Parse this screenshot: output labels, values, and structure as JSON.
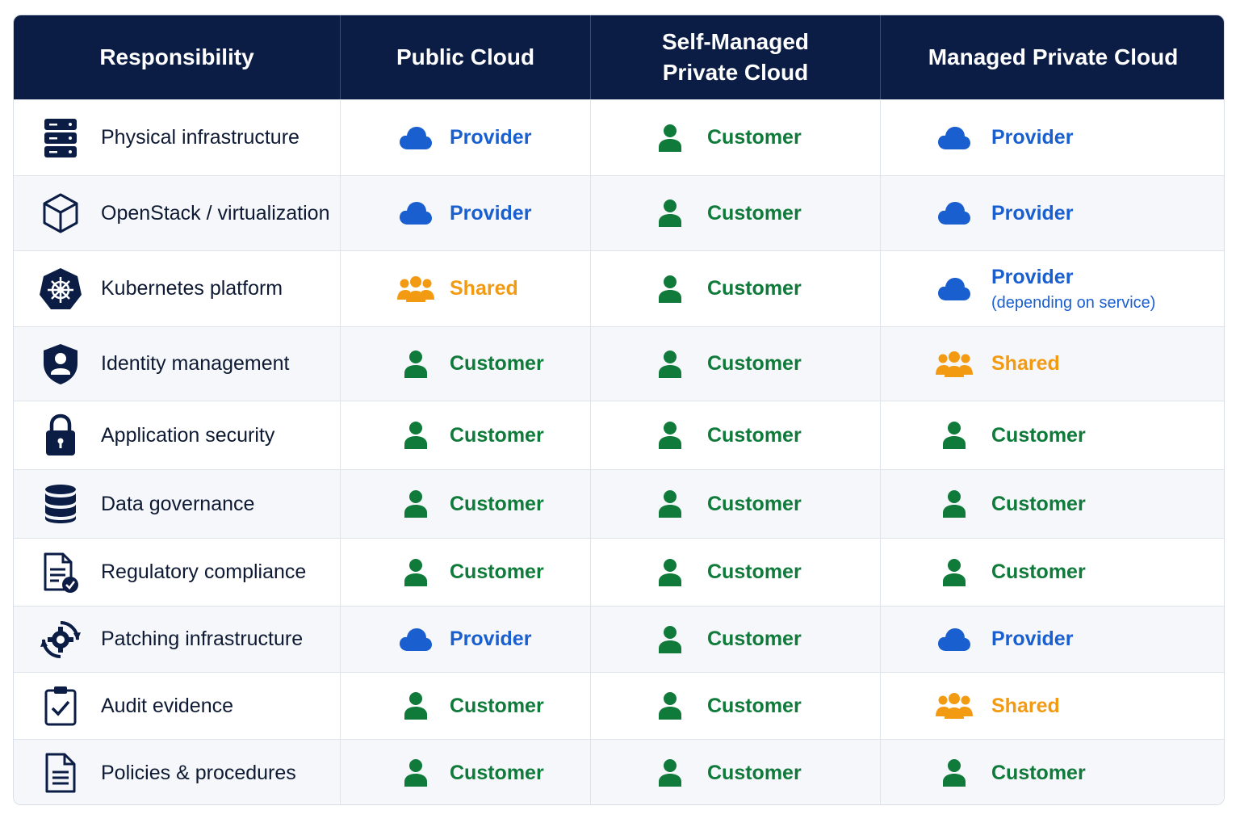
{
  "header": {
    "responsibility": "Responsibility",
    "public_cloud": "Public Cloud",
    "self_managed_line1": "Self-Managed",
    "self_managed_line2": "Private Cloud",
    "managed_private": "Managed Private Cloud"
  },
  "legend_colors": {
    "provider": "#1a5fd0",
    "customer": "#0f7a3a",
    "shared": "#f29a12",
    "header_bg": "#0b1d45"
  },
  "rows": [
    {
      "label": "Physical infrastructure",
      "icon": "server-icon",
      "public": "Provider",
      "self": "Customer",
      "managed": "Provider",
      "managed_note": ""
    },
    {
      "label": "OpenStack / virtualization",
      "icon": "cube-icon",
      "public": "Provider",
      "self": "Customer",
      "managed": "Provider",
      "managed_note": ""
    },
    {
      "label": "Kubernetes platform",
      "icon": "kubernetes-icon",
      "public": "Shared",
      "self": "Customer",
      "managed": "Provider",
      "managed_note": "(depending on service)"
    },
    {
      "label": "Identity management",
      "icon": "shield-user-icon",
      "public": "Customer",
      "self": "Customer",
      "managed": "Shared",
      "managed_note": ""
    },
    {
      "label": "Application security",
      "icon": "lock-icon",
      "public": "Customer",
      "self": "Customer",
      "managed": "Customer",
      "managed_note": ""
    },
    {
      "label": "Data governance",
      "icon": "database-icon",
      "public": "Customer",
      "self": "Customer",
      "managed": "Customer",
      "managed_note": ""
    },
    {
      "label": "Regulatory compliance",
      "icon": "document-check-icon",
      "public": "Customer",
      "self": "Customer",
      "managed": "Customer",
      "managed_note": ""
    },
    {
      "label": "Patching infrastructure",
      "icon": "gear-refresh-icon",
      "public": "Provider",
      "self": "Customer",
      "managed": "Provider",
      "managed_note": ""
    },
    {
      "label": "Audit evidence",
      "icon": "clipboard-check-icon",
      "public": "Customer",
      "self": "Customer",
      "managed": "Shared",
      "managed_note": ""
    },
    {
      "label": "Policies & procedures",
      "icon": "document-icon",
      "public": "Customer",
      "self": "Customer",
      "managed": "Customer",
      "managed_note": ""
    }
  ]
}
